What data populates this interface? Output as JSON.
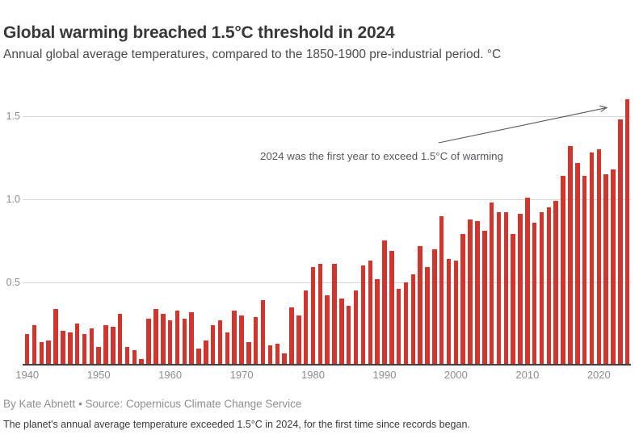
{
  "header": {
    "title": "Global warming breached 1.5°C threshold in 2024",
    "subtitle": "Annual global average temperatures, compared to the 1850-1900 pre-industrial period. °C"
  },
  "chart_data": {
    "type": "bar",
    "title": "Global warming breached 1.5°C threshold in 2024",
    "subtitle": "Annual global average temperatures, compared to the 1850-1900 pre-industrial period. °C",
    "unit": "°C",
    "years": [
      1940,
      1941,
      1942,
      1943,
      1944,
      1945,
      1946,
      1947,
      1948,
      1949,
      1950,
      1951,
      1952,
      1953,
      1954,
      1955,
      1956,
      1957,
      1958,
      1959,
      1960,
      1961,
      1962,
      1963,
      1964,
      1965,
      1966,
      1967,
      1968,
      1969,
      1970,
      1971,
      1972,
      1973,
      1974,
      1975,
      1976,
      1977,
      1978,
      1979,
      1980,
      1981,
      1982,
      1983,
      1984,
      1985,
      1986,
      1987,
      1988,
      1989,
      1990,
      1991,
      1992,
      1993,
      1994,
      1995,
      1996,
      1997,
      1998,
      1999,
      2000,
      2001,
      2002,
      2003,
      2004,
      2005,
      2006,
      2007,
      2008,
      2009,
      2010,
      2011,
      2012,
      2013,
      2014,
      2015,
      2016,
      2017,
      2018,
      2019,
      2020,
      2021,
      2022,
      2023,
      2024
    ],
    "values": [
      0.19,
      0.24,
      0.14,
      0.15,
      0.34,
      0.21,
      0.2,
      0.25,
      0.19,
      0.22,
      0.11,
      0.24,
      0.23,
      0.31,
      0.11,
      0.09,
      0.04,
      0.28,
      0.34,
      0.31,
      0.27,
      0.33,
      0.28,
      0.32,
      0.1,
      0.15,
      0.24,
      0.27,
      0.2,
      0.33,
      0.3,
      0.14,
      0.29,
      0.39,
      0.12,
      0.13,
      0.07,
      0.35,
      0.3,
      0.45,
      0.59,
      0.61,
      0.42,
      0.61,
      0.4,
      0.36,
      0.45,
      0.6,
      0.63,
      0.52,
      0.75,
      0.69,
      0.46,
      0.5,
      0.55,
      0.72,
      0.59,
      0.7,
      0.9,
      0.64,
      0.63,
      0.79,
      0.88,
      0.87,
      0.81,
      0.98,
      0.92,
      0.92,
      0.79,
      0.91,
      1.01,
      0.86,
      0.92,
      0.95,
      0.99,
      1.14,
      1.32,
      1.22,
      1.14,
      1.28,
      1.3,
      1.15,
      1.18,
      1.48,
      1.6
    ],
    "ylim": [
      0,
      1.65
    ],
    "yticks": [
      "0.5",
      "1.0",
      "1.5"
    ],
    "ytick_values": [
      0.5,
      1.0,
      1.5
    ],
    "xticks": [
      1940,
      1950,
      1960,
      1970,
      1980,
      1990,
      2000,
      2010,
      2020
    ],
    "grid": "horizontal gridlines at y ticks",
    "legend": "none",
    "annotation": "2024 was the first year to exceed 1.5°C of warming",
    "colors": {
      "bar": "#d2342e",
      "grid": "#d7d7d7",
      "axis_line": "#404040",
      "tick_label": "#8c8c8c",
      "annotation": "#56575b",
      "arrow": "#56575b"
    }
  },
  "footer": {
    "byline": "By Kate Abnett • Source: Copernicus Climate Change Service",
    "note": "The planet's annual average temperature exceeded 1.5°C in 2024, for the first time since records began."
  }
}
